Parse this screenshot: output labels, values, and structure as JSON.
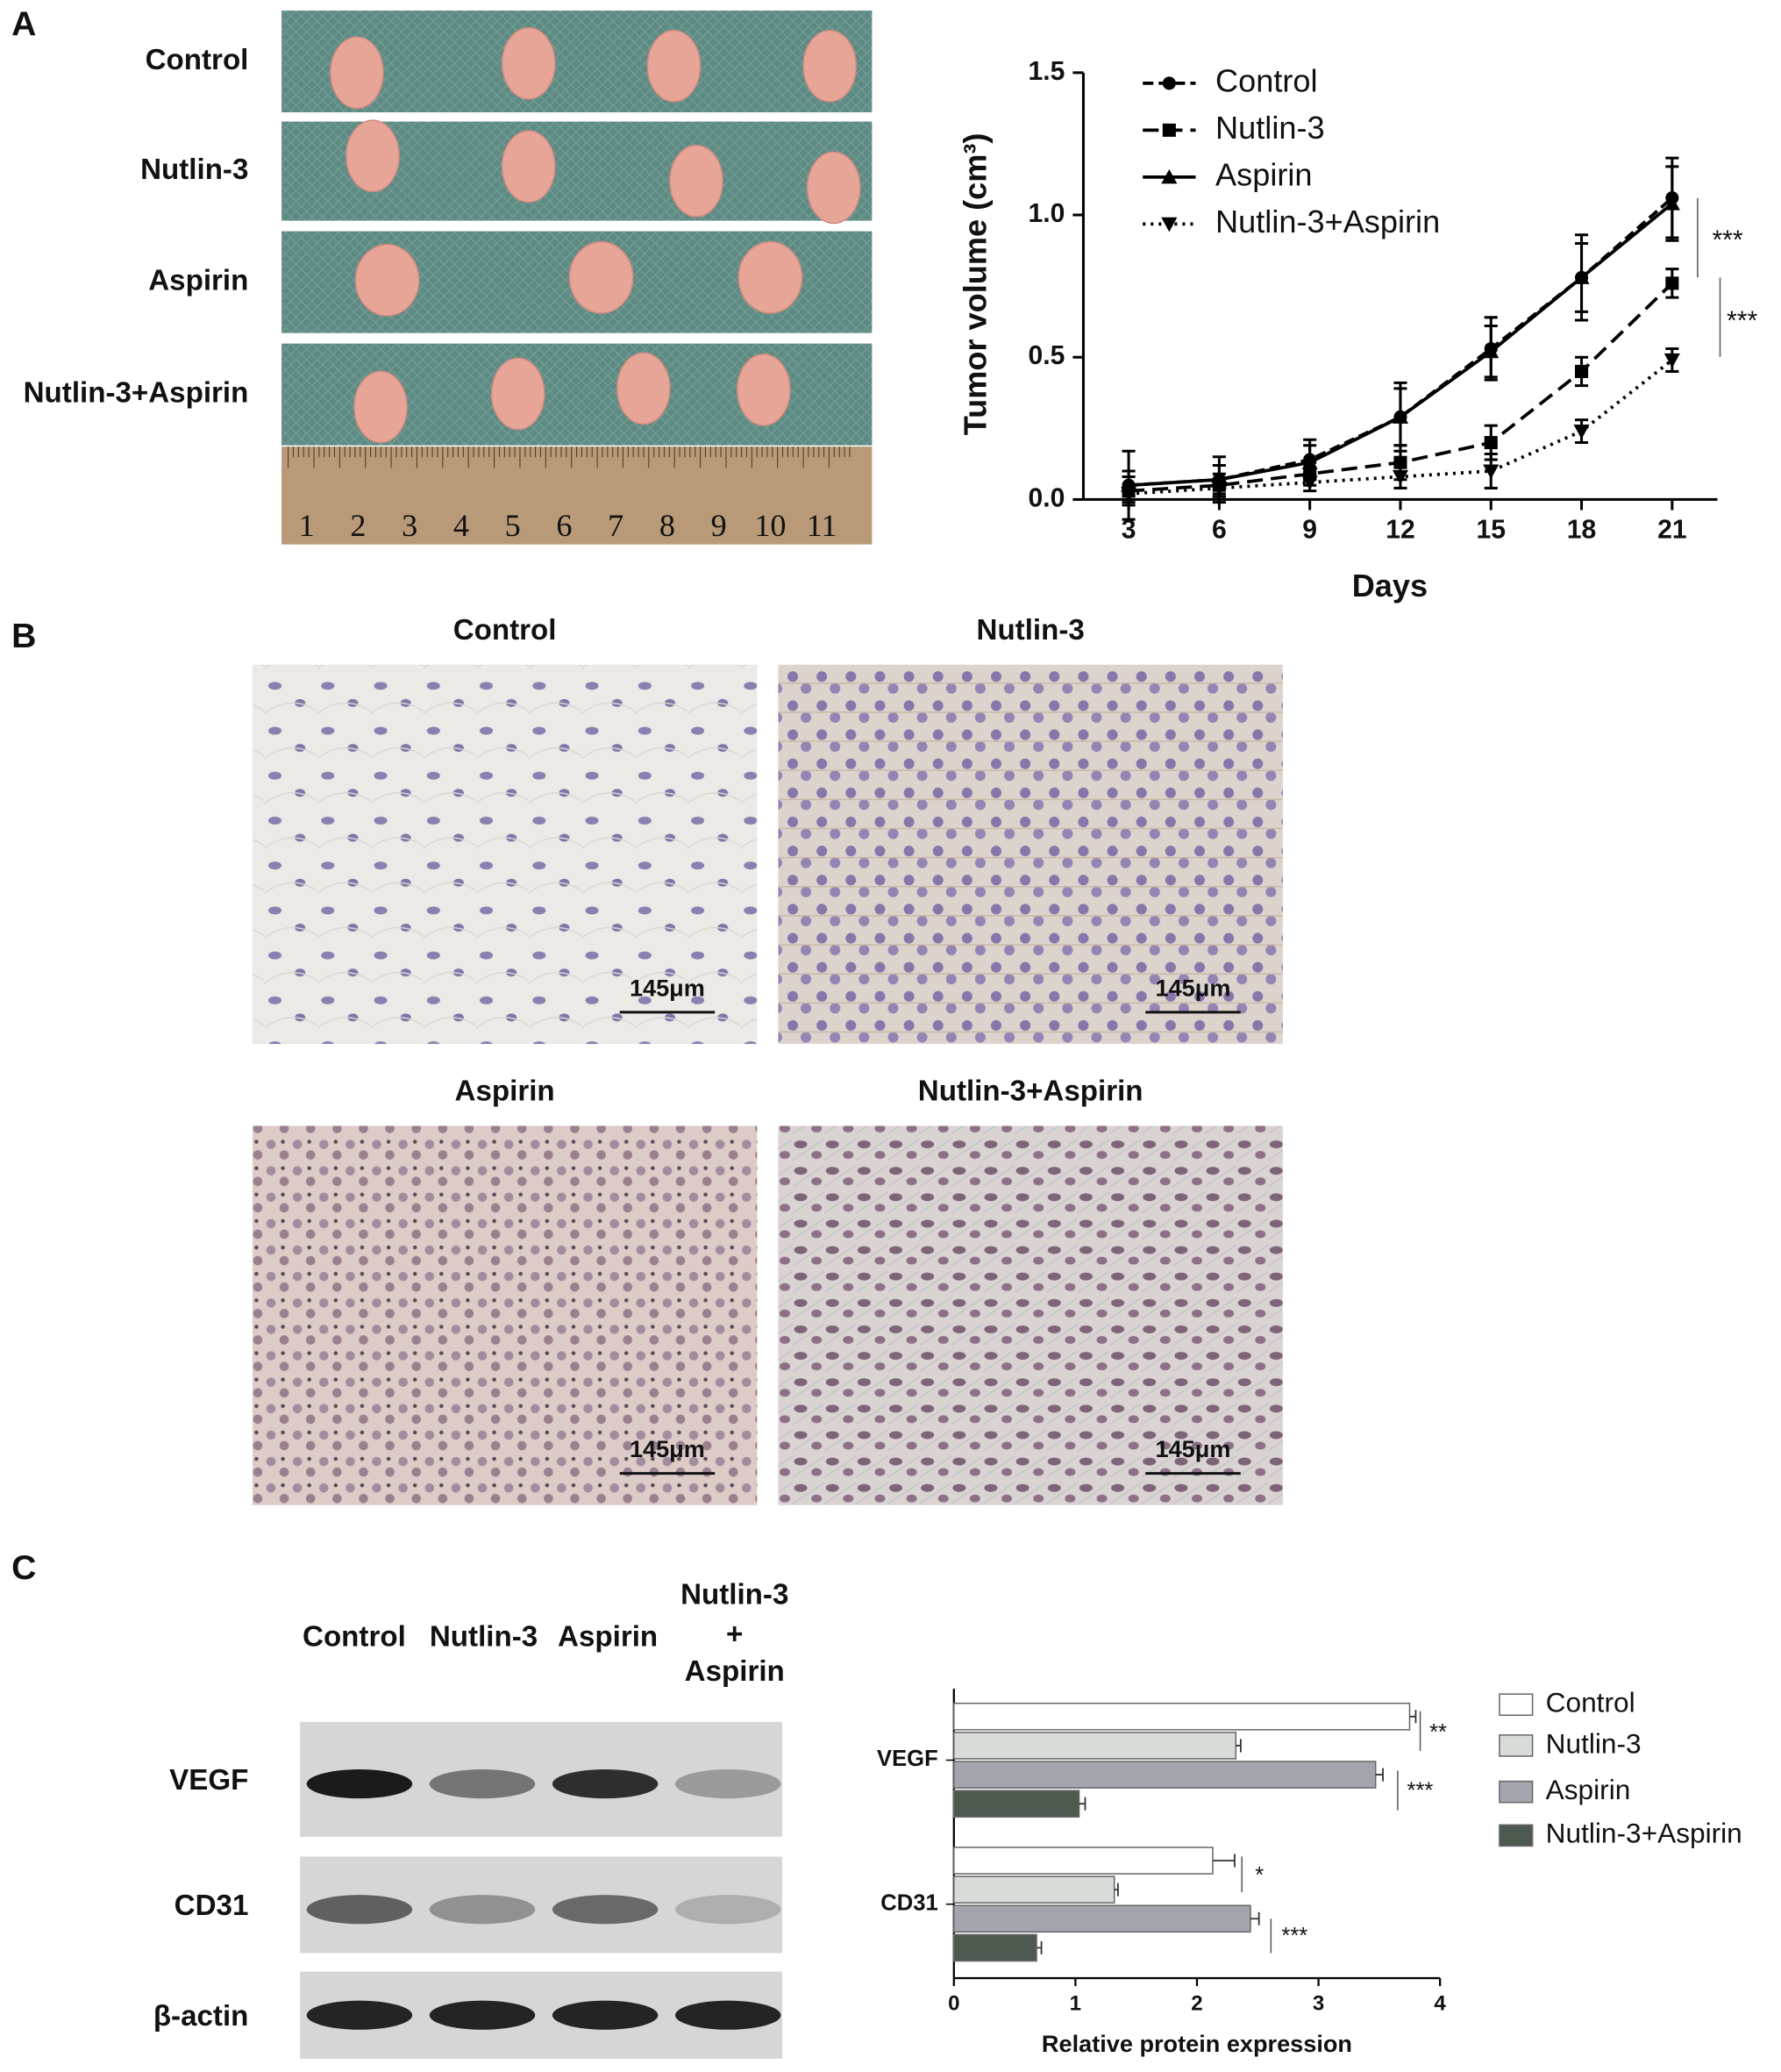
{
  "panels": {
    "labels": [
      "A",
      "B",
      "C"
    ],
    "photo_rows": [
      "Control",
      "Nutlin-3",
      "Aspirin",
      "Nutlin-3+Aspirin"
    ],
    "ruler": [
      "1",
      "2",
      "3",
      "4",
      "5",
      "6",
      "7",
      "8",
      "9",
      "10",
      "11"
    ],
    "ihc": [
      {
        "title": "Control",
        "scale": "145μm"
      },
      {
        "title": "Nutlin-3",
        "scale": "145μm"
      },
      {
        "title": "Aspirin",
        "scale": "145μm"
      },
      {
        "title": "Nutlin-3+Aspirin",
        "scale": "145μm"
      }
    ],
    "blot_lanes": [
      "Control",
      "Nutlin-3",
      "Aspirin",
      "Nutlin-3",
      "+",
      "Aspirin"
    ],
    "blot_rows": [
      "VEGF",
      "CD31",
      "β-actin"
    ]
  },
  "chart_data": [
    {
      "type": "line",
      "xlabel": "Days",
      "ylabel": "Tumor volume (cm³)",
      "x": [
        3,
        6,
        9,
        12,
        15,
        18,
        21
      ],
      "xlim": [
        1.5,
        22.5
      ],
      "xticks": [
        3,
        6,
        9,
        12,
        15,
        18,
        21
      ],
      "ylim": [
        0,
        1.5
      ],
      "yticks": [
        {
          "value": 0,
          "label": "0.0"
        },
        0.5,
        {
          "value": 1,
          "label": "1.0"
        },
        1.5
      ],
      "legend": "upper left",
      "series": [
        {
          "name": "Control",
          "color": "#000000",
          "marker": "circle",
          "line_style": "dashed",
          "values": [
            0.05,
            0.07,
            0.14,
            0.29,
            0.53,
            0.78,
            1.06
          ],
          "errors": [
            0.12,
            0.08,
            0.07,
            0.12,
            0.11,
            0.15,
            0.14
          ]
        },
        {
          "name": "Nutlin-3",
          "color": "#000000",
          "marker": "square",
          "line_style": "dashed-long",
          "values": [
            0.03,
            0.05,
            0.09,
            0.13,
            0.2,
            0.45,
            0.76
          ],
          "errors": [
            0.05,
            0.04,
            0.04,
            0.06,
            0.06,
            0.05,
            0.05
          ]
        },
        {
          "name": "Aspirin",
          "color": "#000000",
          "marker": "triangle",
          "line_style": "solid",
          "values": [
            0.05,
            0.07,
            0.13,
            0.29,
            0.52,
            0.78,
            1.04
          ],
          "errors": [
            0.05,
            0.05,
            0.06,
            0.1,
            0.09,
            0.12,
            0.13
          ]
        },
        {
          "name": "Nutlin-3+Aspirin",
          "color": "#000000",
          "marker": "triangle-down",
          "line_style": "dotted",
          "values": [
            0.02,
            0.04,
            0.06,
            0.08,
            0.1,
            0.24,
            0.49
          ],
          "errors": [
            0.03,
            0.03,
            0.03,
            0.04,
            0.06,
            0.04,
            0.04
          ]
        }
      ],
      "annotations": [
        "***",
        "***"
      ]
    },
    {
      "type": "bar",
      "orientation": "horizontal",
      "xlabel": "Relative protein expression",
      "categories": [
        "VEGF",
        "CD31"
      ],
      "xlim": [
        0,
        4
      ],
      "xticks": [
        0,
        1,
        2,
        3,
        4
      ],
      "legend": "upper right",
      "series": [
        {
          "name": "Control",
          "color": "#ffffff",
          "values": [
            3.75,
            2.13
          ],
          "errors": [
            0.05,
            0.18
          ]
        },
        {
          "name": "Nutlin-3",
          "color": "#d7dcd9",
          "values": [
            2.32,
            1.32
          ],
          "errors": [
            0.04,
            0.03
          ]
        },
        {
          "name": "Aspirin",
          "color": "#a3a5ad",
          "values": [
            3.47,
            2.44
          ],
          "errors": [
            0.06,
            0.07
          ]
        },
        {
          "name": "Nutlin-3+Aspirin",
          "color": "#4d5a50",
          "values": [
            1.03,
            0.68
          ],
          "errors": [
            0.05,
            0.04
          ]
        }
      ],
      "annotations": [
        "**",
        "***",
        "*",
        "***"
      ]
    }
  ]
}
